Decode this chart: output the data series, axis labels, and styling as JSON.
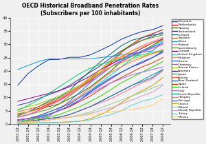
{
  "title": "OECD Historical Broadband Penetration Rates\n(Subscribers per 100 inhabitants)",
  "xlabel": "",
  "ylabel": "",
  "xlabels": [
    "2001 Q2",
    "2001 Q4",
    "2002 Q2",
    "2002 Q4",
    "2003 Q2",
    "2003 Q4",
    "2004 Q2",
    "2004 Q4",
    "2005 Q2",
    "2005 Q4",
    "2006 Q2",
    "2006 Q4",
    "2007 Q2",
    "2007 Q4",
    "2008 Q2"
  ],
  "ylim": [
    0,
    40
  ],
  "yticks": [
    0,
    5.0,
    10.0,
    15.0,
    20.0,
    25.0,
    30.0,
    35.0,
    40.0
  ],
  "countries": [
    "Denmark",
    "Netherlands",
    "Norway",
    "Switzerland",
    "Iceland",
    "Sweden",
    "Korea",
    "Finland",
    "Luxembourg",
    "Canada",
    "United Kingdom",
    "Belgium",
    "France",
    "Germany",
    "United States",
    "Australia",
    "Japan",
    "Austria",
    "New Zealand",
    "Spain",
    "Ireland",
    "Italy",
    "Czech Republic",
    "Hungary",
    "Portugal",
    "Greece",
    "Poland",
    "Slovak Republic",
    "Turkey",
    "Mexico"
  ],
  "colors": [
    "#003399",
    "#cc0000",
    "#336600",
    "#333399",
    "#006666",
    "#ff6600",
    "#0099cc",
    "#ff99cc",
    "#669900",
    "#800080",
    "#00cccc",
    "#ff9900",
    "#3366ff",
    "#ff3399",
    "#99cc00",
    "#6600cc",
    "#00cc66",
    "#ff6633",
    "#0066cc",
    "#cc3300",
    "#33cc00",
    "#9966ff",
    "#009999",
    "#ff6699",
    "#336699",
    "#cc9900",
    "#99cc99",
    "#cc99cc",
    "#66cccc",
    "#ffcc66"
  ],
  "data": {
    "Denmark": [
      14.6,
      19.0,
      21.9,
      24.2,
      24.3,
      25.1,
      25.1,
      26.0,
      27.8,
      29.7,
      31.9,
      33.5,
      34.8,
      35.5,
      37.0
    ],
    "Netherlands": [
      3.5,
      4.5,
      5.8,
      7.5,
      9.0,
      11.0,
      13.5,
      16.0,
      19.5,
      23.0,
      27.0,
      30.0,
      32.5,
      34.0,
      35.5
    ],
    "Norway": [
      3.8,
      4.5,
      5.5,
      6.5,
      7.5,
      9.5,
      11.5,
      14.0,
      17.0,
      20.0,
      23.5,
      25.5,
      27.5,
      29.5,
      32.0
    ],
    "Switzerland": [
      7.0,
      8.0,
      9.5,
      11.0,
      12.5,
      14.5,
      17.0,
      19.5,
      22.0,
      25.0,
      27.5,
      29.5,
      31.5,
      33.0,
      34.5
    ],
    "Iceland": [
      3.0,
      4.5,
      6.5,
      8.5,
      10.0,
      12.5,
      16.5,
      20.0,
      23.5,
      26.5,
      29.5,
      31.5,
      32.5,
      33.5,
      34.0
    ],
    "Sweden": [
      4.5,
      5.5,
      6.5,
      8.0,
      9.5,
      12.0,
      14.5,
      17.0,
      19.5,
      22.5,
      25.0,
      27.5,
      29.5,
      31.0,
      32.5
    ],
    "Korea": [
      20.5,
      22.0,
      23.5,
      24.5,
      24.5,
      24.5,
      24.5,
      24.5,
      25.0,
      25.5,
      26.0,
      26.5,
      27.0,
      27.5,
      31.0
    ],
    "Finland": [
      3.5,
      4.5,
      5.5,
      7.0,
      8.5,
      11.0,
      13.5,
      16.5,
      19.5,
      22.5,
      25.5,
      27.5,
      29.5,
      31.0,
      32.5
    ],
    "Luxembourg": [
      2.5,
      3.5,
      4.5,
      5.5,
      7.5,
      10.5,
      13.5,
      17.0,
      20.5,
      24.0,
      27.5,
      30.0,
      31.5,
      32.5,
      33.5
    ],
    "Canada": [
      8.5,
      9.5,
      10.5,
      11.5,
      12.5,
      14.0,
      16.0,
      18.0,
      20.5,
      22.5,
      24.5,
      26.5,
      28.5,
      30.5,
      32.0
    ],
    "United Kingdom": [
      1.5,
      2.0,
      2.8,
      3.8,
      5.0,
      7.0,
      9.0,
      12.5,
      15.5,
      18.5,
      21.5,
      24.5,
      27.0,
      29.0,
      31.5
    ],
    "Belgium": [
      3.5,
      4.5,
      5.5,
      7.0,
      9.0,
      11.5,
      14.5,
      17.5,
      20.5,
      23.5,
      25.5,
      27.5,
      29.0,
      30.5,
      31.5
    ],
    "France": [
      1.0,
      1.5,
      2.0,
      3.0,
      5.5,
      8.5,
      12.0,
      15.5,
      18.5,
      21.5,
      24.0,
      26.0,
      27.5,
      29.0,
      30.5
    ],
    "Germany": [
      2.5,
      3.5,
      5.0,
      7.0,
      9.0,
      11.5,
      14.0,
      16.5,
      19.0,
      21.5,
      23.5,
      25.5,
      27.0,
      28.5,
      30.0
    ],
    "United States": [
      5.5,
      6.5,
      7.5,
      9.0,
      10.5,
      12.5,
      14.5,
      17.0,
      19.5,
      21.5,
      23.0,
      24.5,
      25.5,
      26.5,
      27.5
    ],
    "Australia": [
      1.5,
      2.0,
      2.5,
      3.5,
      5.0,
      6.5,
      9.0,
      12.0,
      14.5,
      17.0,
      19.5,
      21.5,
      23.0,
      25.0,
      27.0
    ],
    "Japan": [
      5.0,
      7.0,
      9.0,
      11.5,
      14.0,
      16.5,
      19.0,
      21.0,
      22.5,
      23.5,
      24.5,
      25.5,
      26.0,
      27.0,
      27.5
    ],
    "Austria": [
      1.5,
      2.0,
      3.0,
      4.5,
      6.0,
      8.0,
      10.5,
      13.5,
      16.5,
      19.5,
      21.5,
      23.5,
      25.0,
      26.5,
      28.0
    ],
    "New Zealand": [
      1.5,
      2.0,
      3.0,
      4.5,
      6.0,
      7.5,
      10.0,
      12.5,
      15.0,
      17.5,
      19.5,
      21.5,
      23.5,
      25.0,
      27.5
    ],
    "Spain": [
      1.5,
      2.0,
      2.5,
      3.5,
      5.0,
      6.5,
      8.5,
      10.5,
      13.0,
      15.5,
      17.5,
      19.5,
      21.5,
      23.0,
      25.0
    ],
    "Ireland": [
      1.0,
      1.5,
      2.0,
      2.5,
      3.5,
      5.0,
      6.5,
      8.5,
      10.5,
      13.0,
      15.5,
      17.5,
      19.5,
      21.5,
      23.5
    ],
    "Italy": [
      1.5,
      2.0,
      2.5,
      3.5,
      5.0,
      7.0,
      9.0,
      11.5,
      13.5,
      15.5,
      17.0,
      18.5,
      19.5,
      20.5,
      21.5
    ],
    "Czech Republic": [
      0.5,
      1.0,
      1.5,
      2.0,
      2.5,
      3.5,
      5.0,
      6.5,
      8.5,
      10.5,
      12.5,
      14.5,
      16.5,
      18.5,
      20.5
    ],
    "Hungary": [
      0.5,
      1.0,
      1.5,
      2.0,
      2.5,
      3.5,
      5.0,
      6.5,
      8.0,
      9.5,
      11.5,
      13.5,
      15.5,
      17.0,
      20.0
    ],
    "Portugal": [
      0.5,
      1.0,
      1.5,
      2.0,
      2.5,
      3.5,
      5.0,
      6.5,
      8.5,
      10.5,
      12.5,
      14.5,
      16.0,
      17.5,
      20.5
    ],
    "Greece": [
      0.2,
      0.3,
      0.4,
      0.5,
      0.6,
      0.8,
      1.0,
      2.0,
      3.5,
      5.5,
      8.0,
      10.5,
      12.5,
      14.5,
      17.5
    ],
    "Poland": [
      0.5,
      0.8,
      1.0,
      1.5,
      2.0,
      2.5,
      3.5,
      4.5,
      6.0,
      7.5,
      9.0,
      10.5,
      12.0,
      13.5,
      15.0
    ],
    "Slovak Republic": [
      0.5,
      0.8,
      1.0,
      1.5,
      2.0,
      2.5,
      3.0,
      4.0,
      5.0,
      6.0,
      7.5,
      9.0,
      10.5,
      12.0,
      14.5
    ],
    "Turkey": [
      0.1,
      0.2,
      0.3,
      0.4,
      0.5,
      0.7,
      1.0,
      1.5,
      2.5,
      3.5,
      5.0,
      7.0,
      8.5,
      9.5,
      11.0
    ],
    "Mexico": [
      0.5,
      0.8,
      1.0,
      1.5,
      2.0,
      2.5,
      3.0,
      3.5,
      4.0,
      4.5,
      5.0,
      5.5,
      6.0,
      7.0,
      9.5
    ]
  }
}
